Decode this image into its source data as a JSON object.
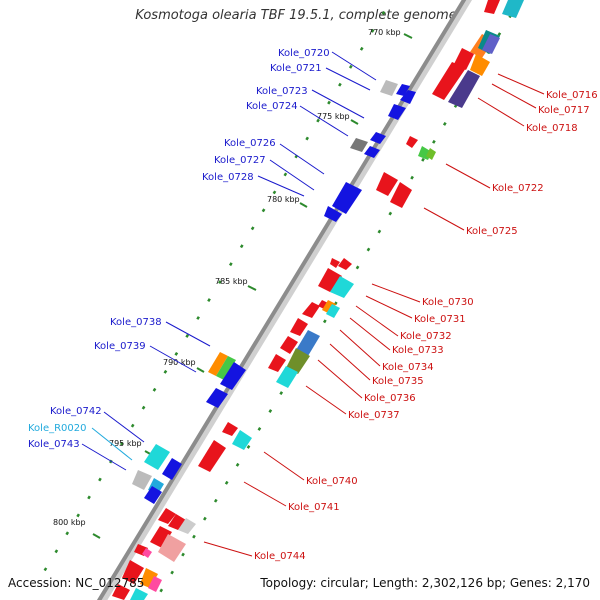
{
  "title": "Kosmotoga olearia TBF 19.5.1, complete genome",
  "accession": "Accession: NC_012785",
  "summary": "Topology: circular; Length: 2,302,126 bp; Genes: 2,170",
  "ticks": [
    "770 kbp",
    "775 kbp",
    "780 kbp",
    "785 kbp",
    "790 kbp",
    "795 kbp",
    "800 kbp"
  ],
  "left_labels": [
    {
      "text": "Kole_0720",
      "color": "#1a1acc"
    },
    {
      "text": "Kole_0721",
      "color": "#1a1acc"
    },
    {
      "text": "Kole_0723",
      "color": "#1a1acc"
    },
    {
      "text": "Kole_0724",
      "color": "#1a1acc"
    },
    {
      "text": "Kole_0726",
      "color": "#1a1acc"
    },
    {
      "text": "Kole_0727",
      "color": "#1a1acc"
    },
    {
      "text": "Kole_0728",
      "color": "#1a1acc"
    },
    {
      "text": "Kole_0738",
      "color": "#1a1acc"
    },
    {
      "text": "Kole_0739",
      "color": "#1a1acc"
    },
    {
      "text": "Kole_0742",
      "color": "#1a1acc"
    },
    {
      "text": "Kole_R0020",
      "color": "#22aadd"
    },
    {
      "text": "Kole_0743",
      "color": "#1a1acc"
    }
  ],
  "right_labels": [
    {
      "text": "Kole_0716",
      "color": "#cc1111"
    },
    {
      "text": "Kole_0717",
      "color": "#cc1111"
    },
    {
      "text": "Kole_0718",
      "color": "#cc1111"
    },
    {
      "text": "Kole_0722",
      "color": "#cc1111"
    },
    {
      "text": "Kole_0725",
      "color": "#cc1111"
    },
    {
      "text": "Kole_0730",
      "color": "#cc1111"
    },
    {
      "text": "Kole_0731",
      "color": "#cc1111"
    },
    {
      "text": "Kole_0732",
      "color": "#cc1111"
    },
    {
      "text": "Kole_0733",
      "color": "#cc1111"
    },
    {
      "text": "Kole_0734",
      "color": "#cc1111"
    },
    {
      "text": "Kole_0735",
      "color": "#cc1111"
    },
    {
      "text": "Kole_0736",
      "color": "#cc1111"
    },
    {
      "text": "Kole_0737",
      "color": "#cc1111"
    },
    {
      "text": "Kole_0740",
      "color": "#cc1111"
    },
    {
      "text": "Kole_0741",
      "color": "#cc1111"
    },
    {
      "text": "Kole_0744",
      "color": "#cc1111"
    }
  ],
  "colors": {
    "backbone": "#8c8c8c",
    "forward_strand": "#e8141c",
    "reverse_strand": "#1414e0",
    "gc_dots": "#2d8a2d"
  }
}
